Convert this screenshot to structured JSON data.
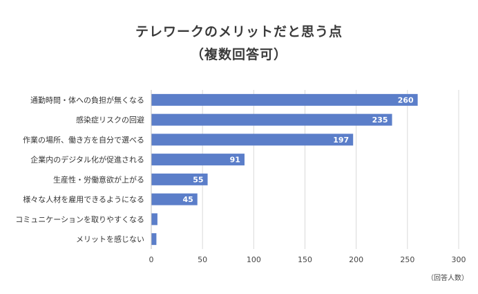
{
  "chart_data": {
    "type": "bar",
    "orientation": "horizontal",
    "title": "テレワークのメリットだと思う点",
    "subtitle": "（複数回答可）",
    "categories": [
      "通勤時間・体への負担が無くなる",
      "感染症リスクの回避",
      "作業の場所、働き方を自分で選べる",
      "企業内のデジタル化が促進される",
      "生産性・労働意欲が上がる",
      "様々な人材を雇用できるようになる",
      "コミュニケーションを取りやすくなる",
      "メリットを感じない"
    ],
    "values": [
      260,
      235,
      197,
      91,
      55,
      45,
      6,
      5
    ],
    "value_labels": [
      "260",
      "235",
      "197",
      "91",
      "55",
      "45",
      "",
      ""
    ],
    "xlim": [
      0,
      300
    ],
    "xticks": [
      "0",
      "50",
      "100",
      "150",
      "200",
      "250",
      "300"
    ],
    "xlabel": "（回答人数）",
    "grid": "vertical",
    "legend": "none",
    "bar_color": "#5b7ec9",
    "label_color": "#ffffff"
  }
}
